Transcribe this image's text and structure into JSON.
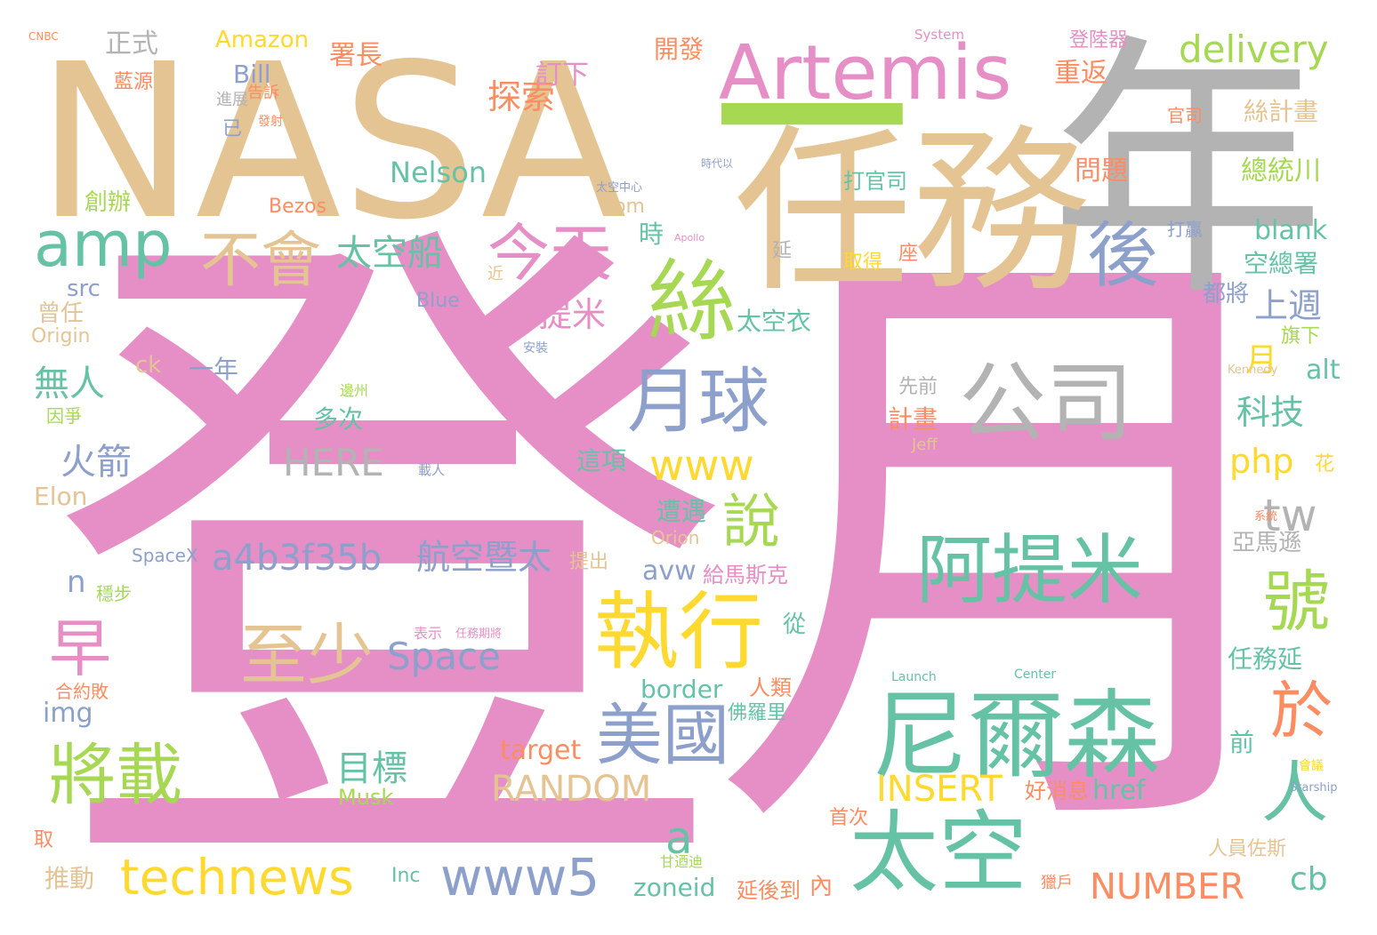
{
  "palette": {
    "pink": "#e58fc6",
    "tan": "#e5c494",
    "gray": "#b3b3b3",
    "teal": "#66c2a5",
    "lime": "#a6d854",
    "yellow": "#ffd92f",
    "orange": "#fc8d62",
    "blue": "#8da0cb"
  },
  "words": [
    {
      "text": "登",
      "color": "pink"
    },
    {
      "text": "月",
      "color": "pink"
    },
    {
      "text": "NASA",
      "color": "tan"
    },
    {
      "text": "年",
      "color": "gray"
    },
    {
      "text": "一",
      "color": "lime"
    },
    {
      "text": "任務",
      "color": "tan"
    },
    {
      "text": "Artemis",
      "color": "pink"
    },
    {
      "text": "公司",
      "color": "gray"
    },
    {
      "text": "尼爾森",
      "color": "teal"
    },
    {
      "text": "阿提米",
      "color": "teal"
    },
    {
      "text": "太空",
      "color": "teal"
    },
    {
      "text": "執行",
      "color": "yellow"
    },
    {
      "text": "月球",
      "color": "blue"
    },
    {
      "text": "絲",
      "color": "lime"
    },
    {
      "text": "amp",
      "color": "teal"
    },
    {
      "text": "今天",
      "color": "pink"
    },
    {
      "text": "不會",
      "color": "tan"
    },
    {
      "text": "後",
      "color": "blue"
    },
    {
      "text": "至少",
      "color": "tan"
    },
    {
      "text": "美國",
      "color": "blue"
    },
    {
      "text": "將載",
      "color": "lime"
    },
    {
      "text": "technews",
      "color": "yellow"
    },
    {
      "text": "www5",
      "color": "blue"
    },
    {
      "text": "號",
      "color": "lime"
    },
    {
      "text": "人",
      "color": "teal"
    },
    {
      "text": "於",
      "color": "orange"
    },
    {
      "text": "說",
      "color": "lime"
    },
    {
      "text": "早",
      "color": "pink"
    },
    {
      "text": "www",
      "color": "yellow"
    },
    {
      "text": "tw",
      "color": "gray"
    },
    {
      "text": "太空船",
      "color": "teal"
    },
    {
      "text": "delivery",
      "color": "lime"
    },
    {
      "text": "探索",
      "color": "orange"
    },
    {
      "text": "提米",
      "color": "pink"
    },
    {
      "text": "Space",
      "color": "blue"
    },
    {
      "text": "a4b3f35b",
      "color": "blue"
    },
    {
      "text": "航空暨太",
      "color": "blue"
    },
    {
      "text": "RANDOM",
      "color": "tan"
    },
    {
      "text": "INSERT",
      "color": "yellow"
    },
    {
      "text": "NUMBER",
      "color": "orange"
    },
    {
      "text": "目標",
      "color": "teal"
    },
    {
      "text": "火箭",
      "color": "blue"
    },
    {
      "text": "無人",
      "color": "teal"
    },
    {
      "text": "HERE",
      "color": "gray"
    },
    {
      "text": "Nelson",
      "color": "teal"
    },
    {
      "text": "a",
      "color": "teal"
    },
    {
      "text": "科技",
      "color": "teal"
    },
    {
      "text": "php",
      "color": "yellow"
    },
    {
      "text": "上週",
      "color": "blue"
    },
    {
      "text": "太空衣",
      "color": "teal"
    },
    {
      "text": "blank",
      "color": "teal"
    },
    {
      "text": "空總署",
      "color": "teal"
    },
    {
      "text": "重返",
      "color": "orange"
    },
    {
      "text": "署長",
      "color": "orange"
    },
    {
      "text": "開發",
      "color": "orange"
    },
    {
      "text": "Amazon",
      "color": "yellow"
    },
    {
      "text": "正式",
      "color": "gray"
    },
    {
      "text": "藍源",
      "color": "orange"
    },
    {
      "text": "Bill",
      "color": "blue"
    },
    {
      "text": "告訴",
      "color": "orange"
    },
    {
      "text": "進展",
      "color": "gray"
    },
    {
      "text": "已",
      "color": "blue"
    },
    {
      "text": "創辦",
      "color": "lime"
    },
    {
      "text": "Bezos",
      "color": "orange"
    },
    {
      "text": "com",
      "color": "tan"
    },
    {
      "text": "時",
      "color": "teal"
    },
    {
      "text": "延",
      "color": "gray"
    },
    {
      "text": "src",
      "color": "blue"
    },
    {
      "text": "曾任",
      "color": "tan"
    },
    {
      "text": "Origin",
      "color": "tan"
    },
    {
      "text": "Blue",
      "color": "blue"
    },
    {
      "text": "ck",
      "color": "tan"
    },
    {
      "text": "一年",
      "color": "blue"
    },
    {
      "text": "多次",
      "color": "teal"
    },
    {
      "text": "這項",
      "color": "teal"
    },
    {
      "text": "遭遇",
      "color": "teal"
    },
    {
      "text": "avw",
      "color": "blue"
    },
    {
      "text": "給馬斯克",
      "color": "pink"
    },
    {
      "text": "從",
      "color": "teal"
    },
    {
      "text": "border",
      "color": "teal"
    },
    {
      "text": "人類",
      "color": "orange"
    },
    {
      "text": "佛羅里",
      "color": "teal"
    },
    {
      "text": "target",
      "color": "orange"
    },
    {
      "text": "href",
      "color": "teal"
    },
    {
      "text": "好消息",
      "color": "orange"
    },
    {
      "text": "zoneid",
      "color": "teal"
    },
    {
      "text": "延後到",
      "color": "orange"
    },
    {
      "text": "內",
      "color": "orange"
    },
    {
      "text": "cb",
      "color": "teal"
    },
    {
      "text": "Inc",
      "color": "teal"
    },
    {
      "text": "推動",
      "color": "tan"
    },
    {
      "text": "n",
      "color": "blue"
    },
    {
      "text": "img",
      "color": "blue"
    },
    {
      "text": "合約敗",
      "color": "orange"
    },
    {
      "text": "Elon",
      "color": "tan"
    },
    {
      "text": "因爭",
      "color": "lime"
    },
    {
      "text": "問題",
      "color": "orange"
    },
    {
      "text": "總統川",
      "color": "lime"
    },
    {
      "text": "絲計畫",
      "color": "tan"
    },
    {
      "text": "登陸器",
      "color": "pink"
    },
    {
      "text": "官司",
      "color": "orange"
    },
    {
      "text": "打官司",
      "color": "teal"
    },
    {
      "text": "都將",
      "color": "blue"
    },
    {
      "text": "取得",
      "color": "yellow"
    },
    {
      "text": "打贏",
      "color": "blue"
    },
    {
      "text": "座",
      "color": "orange"
    },
    {
      "text": "月",
      "color": "yellow"
    },
    {
      "text": "旗下",
      "color": "lime"
    },
    {
      "text": "alt",
      "color": "teal"
    },
    {
      "text": "先前",
      "color": "gray"
    },
    {
      "text": "計畫",
      "color": "orange"
    },
    {
      "text": "Jeff",
      "color": "tan"
    },
    {
      "text": "花",
      "color": "yellow"
    },
    {
      "text": "亞馬遜",
      "color": "gray"
    },
    {
      "text": "Orion",
      "color": "tan"
    },
    {
      "text": "提出",
      "color": "tan"
    },
    {
      "text": "任務延",
      "color": "teal"
    },
    {
      "text": "前",
      "color": "teal"
    },
    {
      "text": "人員佐斯",
      "color": "tan"
    },
    {
      "text": "首次",
      "color": "orange"
    },
    {
      "text": "獵戶",
      "color": "orange"
    },
    {
      "text": "甘迺迪",
      "color": "lime"
    },
    {
      "text": "Musk",
      "color": "lime"
    },
    {
      "text": "取",
      "color": "orange"
    },
    {
      "text": "SpaceX",
      "color": "blue"
    },
    {
      "text": "穩步",
      "color": "lime"
    },
    {
      "text": "System",
      "color": "pink"
    },
    {
      "text": "CNBC",
      "color": "orange"
    },
    {
      "text": "訂下",
      "color": "pink"
    },
    {
      "text": "發射",
      "color": "orange"
    },
    {
      "text": "近",
      "color": "tan"
    },
    {
      "text": "安裝",
      "color": "blue"
    },
    {
      "text": "邊州",
      "color": "lime"
    },
    {
      "text": "載人",
      "color": "blue"
    },
    {
      "text": "表示",
      "color": "pink"
    },
    {
      "text": "任務期將",
      "color": "pink"
    },
    {
      "text": "Launch",
      "color": "teal"
    },
    {
      "text": "Center",
      "color": "teal"
    },
    {
      "text": "Kennedy",
      "color": "tan"
    },
    {
      "text": "Apollo",
      "color": "pink"
    },
    {
      "text": "Starship",
      "color": "blue"
    },
    {
      "text": "太空中心",
      "color": "blue"
    },
    {
      "text": "系統",
      "color": "orange"
    },
    {
      "text": "會議",
      "color": "yellow"
    },
    {
      "text": "時代以",
      "color": "blue"
    }
  ]
}
